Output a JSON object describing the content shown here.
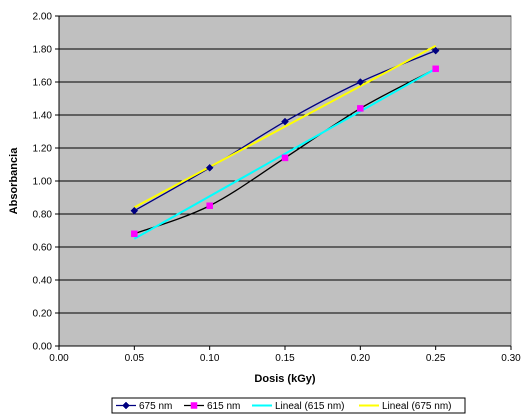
{
  "chart_data": {
    "type": "line",
    "title": "",
    "xlabel": "Dosis (kGy)",
    "ylabel": "Absorbancia",
    "xlim": [
      0,
      0.3
    ],
    "ylim": [
      0,
      2
    ],
    "x_ticks": [
      "0.00",
      "0.05",
      "0.10",
      "0.15",
      "0.20",
      "0.25",
      "0.30"
    ],
    "y_ticks": [
      "0.00",
      "0.20",
      "0.40",
      "0.60",
      "0.80",
      "1.00",
      "1.20",
      "1.40",
      "1.60",
      "1.80",
      "2.00"
    ],
    "grid": "horizontal",
    "plot_background": "#c0c0c0",
    "legend_position": "bottom",
    "series": [
      {
        "name": "675 nm",
        "color": "#000080",
        "marker": "diamond",
        "smooth": true,
        "x": [
          0.05,
          0.1,
          0.15,
          0.2,
          0.25
        ],
        "y": [
          0.82,
          1.08,
          1.36,
          1.6,
          1.79
        ]
      },
      {
        "name": "615 nm",
        "color": "#ff00ff",
        "line_color": "#000000",
        "marker": "square",
        "smooth": true,
        "x": [
          0.05,
          0.1,
          0.15,
          0.2,
          0.25
        ],
        "y": [
          0.68,
          0.85,
          1.14,
          1.44,
          1.68
        ]
      },
      {
        "name": "Lineal (615 nm)",
        "color": "#00ffff",
        "marker": "none",
        "smooth": false,
        "x": [
          0.05,
          0.25
        ],
        "y": [
          0.65,
          1.68
        ]
      },
      {
        "name": "Lineal (675 nm)",
        "color": "#ffff00",
        "marker": "none",
        "smooth": false,
        "x": [
          0.05,
          0.25
        ],
        "y": [
          0.84,
          1.82
        ]
      }
    ]
  }
}
